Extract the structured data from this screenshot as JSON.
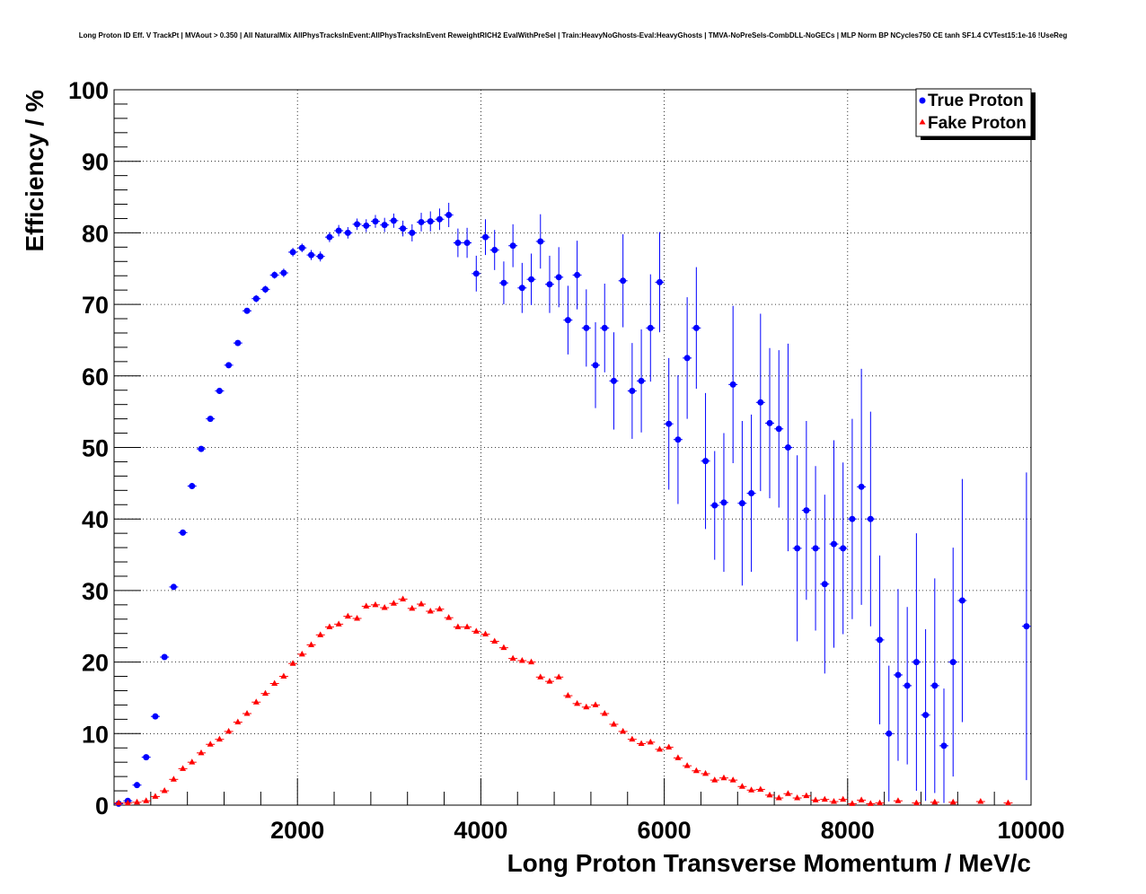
{
  "chart_data": {
    "type": "scatter",
    "title": "Long Proton ID Eff. V TrackPt | MVAout > 0.350 | All NaturalMix AllPhysTracksInEvent:AllPhysTracksInEvent ReweightRICH2 EvalWithPreSel | Train:HeavyNoGhosts-Eval:HeavyGhosts | TMVA-NoPreSels-CombDLL-NoGECs | MLP Norm BP NCycles750 CE tanh SF1.4 CVTest15:1e-16 !UseReg",
    "xlabel": "Long Proton Transverse Momentum / MeV/c",
    "ylabel": "Efficiency / %",
    "xlim": [
      0,
      10000
    ],
    "ylim": [
      0,
      100
    ],
    "grid": true,
    "legend_position": "top-right",
    "x_ticks": [
      2000,
      4000,
      6000,
      8000,
      10000
    ],
    "x_tick_labels": [
      "2000",
      "4000",
      "6000",
      "8000",
      "10000"
    ],
    "y_ticks": [
      0,
      10,
      20,
      30,
      40,
      50,
      60,
      70,
      80,
      90,
      100
    ],
    "y_tick_labels": [
      "0",
      "10",
      "20",
      "30",
      "40",
      "50",
      "60",
      "70",
      "80",
      "90",
      "100"
    ],
    "series": [
      {
        "name": "True Proton",
        "color": "#0000ff",
        "marker": "circle",
        "points": [
          {
            "x": 50,
            "y": 0.2,
            "err": 0.2
          },
          {
            "x": 150,
            "y": 0.6,
            "err": 0.2
          },
          {
            "x": 250,
            "y": 2.8,
            "err": 0.3
          },
          {
            "x": 350,
            "y": 6.7,
            "err": 0.3
          },
          {
            "x": 450,
            "y": 12.4,
            "err": 0.4
          },
          {
            "x": 550,
            "y": 20.7,
            "err": 0.4
          },
          {
            "x": 650,
            "y": 30.5,
            "err": 0.4
          },
          {
            "x": 750,
            "y": 38.1,
            "err": 0.4
          },
          {
            "x": 850,
            "y": 44.6,
            "err": 0.4
          },
          {
            "x": 950,
            "y": 49.8,
            "err": 0.4
          },
          {
            "x": 1050,
            "y": 54.0,
            "err": 0.4
          },
          {
            "x": 1150,
            "y": 57.9,
            "err": 0.4
          },
          {
            "x": 1250,
            "y": 61.5,
            "err": 0.4
          },
          {
            "x": 1350,
            "y": 64.6,
            "err": 0.4
          },
          {
            "x": 1450,
            "y": 69.1,
            "err": 0.4
          },
          {
            "x": 1550,
            "y": 70.8,
            "err": 0.5
          },
          {
            "x": 1650,
            "y": 72.1,
            "err": 0.5
          },
          {
            "x": 1750,
            "y": 74.1,
            "err": 0.5
          },
          {
            "x": 1850,
            "y": 74.4,
            "err": 0.6
          },
          {
            "x": 1950,
            "y": 77.3,
            "err": 0.6
          },
          {
            "x": 2050,
            "y": 77.9,
            "err": 0.6
          },
          {
            "x": 2150,
            "y": 76.9,
            "err": 0.7
          },
          {
            "x": 2250,
            "y": 76.7,
            "err": 0.7
          },
          {
            "x": 2350,
            "y": 79.4,
            "err": 0.7
          },
          {
            "x": 2450,
            "y": 80.3,
            "err": 0.8
          },
          {
            "x": 2550,
            "y": 80.0,
            "err": 0.8
          },
          {
            "x": 2650,
            "y": 81.2,
            "err": 0.8
          },
          {
            "x": 2750,
            "y": 81.0,
            "err": 0.9
          },
          {
            "x": 2850,
            "y": 81.6,
            "err": 0.9
          },
          {
            "x": 2950,
            "y": 81.1,
            "err": 1.0
          },
          {
            "x": 3050,
            "y": 81.7,
            "err": 1.0
          },
          {
            "x": 3150,
            "y": 80.6,
            "err": 1.1
          },
          {
            "x": 3250,
            "y": 80.0,
            "err": 1.2
          },
          {
            "x": 3350,
            "y": 81.5,
            "err": 1.3
          },
          {
            "x": 3450,
            "y": 81.6,
            "err": 1.4
          },
          {
            "x": 3550,
            "y": 81.9,
            "err": 1.5
          },
          {
            "x": 3650,
            "y": 82.5,
            "err": 1.7
          },
          {
            "x": 3750,
            "y": 78.6,
            "err": 2.0
          },
          {
            "x": 3850,
            "y": 78.6,
            "err": 2.1
          },
          {
            "x": 3950,
            "y": 74.3,
            "err": 2.5
          },
          {
            "x": 4050,
            "y": 79.4,
            "err": 2.5
          },
          {
            "x": 4150,
            "y": 77.6,
            "err": 2.8
          },
          {
            "x": 4250,
            "y": 73.0,
            "err": 3.0
          },
          {
            "x": 4350,
            "y": 78.2,
            "err": 3.0
          },
          {
            "x": 4450,
            "y": 72.3,
            "err": 3.5
          },
          {
            "x": 4550,
            "y": 73.5,
            "err": 3.6
          },
          {
            "x": 4650,
            "y": 78.8,
            "err": 3.8
          },
          {
            "x": 4750,
            "y": 72.8,
            "err": 4.0
          },
          {
            "x": 4850,
            "y": 73.8,
            "err": 4.2
          },
          {
            "x": 4950,
            "y": 67.8,
            "err": 4.8
          },
          {
            "x": 5050,
            "y": 74.1,
            "err": 4.8
          },
          {
            "x": 5150,
            "y": 66.7,
            "err": 5.4
          },
          {
            "x": 5250,
            "y": 61.5,
            "err": 6.0
          },
          {
            "x": 5350,
            "y": 66.7,
            "err": 6.2
          },
          {
            "x": 5450,
            "y": 59.3,
            "err": 6.8
          },
          {
            "x": 5550,
            "y": 73.3,
            "err": 6.5
          },
          {
            "x": 5650,
            "y": 57.9,
            "err": 6.7
          },
          {
            "x": 5750,
            "y": 59.3,
            "err": 7.2
          },
          {
            "x": 5850,
            "y": 66.7,
            "err": 7.5
          },
          {
            "x": 5950,
            "y": 73.1,
            "err": 7.0
          },
          {
            "x": 6050,
            "y": 53.3,
            "err": 9.2
          },
          {
            "x": 6150,
            "y": 51.1,
            "err": 9.0
          },
          {
            "x": 6250,
            "y": 62.5,
            "err": 8.5
          },
          {
            "x": 6350,
            "y": 66.7,
            "err": 8.5
          },
          {
            "x": 6450,
            "y": 48.1,
            "err": 9.5
          },
          {
            "x": 6550,
            "y": 41.9,
            "err": 7.6
          },
          {
            "x": 6650,
            "y": 42.3,
            "err": 9.7
          },
          {
            "x": 6750,
            "y": 58.8,
            "err": 11.0
          },
          {
            "x": 6850,
            "y": 42.2,
            "err": 11.5
          },
          {
            "x": 6950,
            "y": 43.6,
            "err": 11.0
          },
          {
            "x": 7050,
            "y": 56.3,
            "err": 12.4
          },
          {
            "x": 7150,
            "y": 53.4,
            "err": 10.5
          },
          {
            "x": 7250,
            "y": 52.6,
            "err": 11.0
          },
          {
            "x": 7350,
            "y": 50.0,
            "err": 14.5
          },
          {
            "x": 7450,
            "y": 35.9,
            "err": 13.0
          },
          {
            "x": 7550,
            "y": 41.2,
            "err": 12.5
          },
          {
            "x": 7650,
            "y": 35.9,
            "err": 11.5
          },
          {
            "x": 7750,
            "y": 30.9,
            "err": 12.5
          },
          {
            "x": 7850,
            "y": 36.5,
            "err": 14.5
          },
          {
            "x": 7950,
            "y": 35.9,
            "err": 12.0
          },
          {
            "x": 8050,
            "y": 40.0,
            "err": 14.0
          },
          {
            "x": 8150,
            "y": 44.5,
            "err": 16.5
          },
          {
            "x": 8250,
            "y": 40.0,
            "err": 15.0
          },
          {
            "x": 8350,
            "y": 23.1,
            "err": 11.8
          },
          {
            "x": 8450,
            "y": 10.0,
            "err": 9.5
          },
          {
            "x": 8550,
            "y": 18.2,
            "err": 12.0
          },
          {
            "x": 8650,
            "y": 16.7,
            "err": 11.0
          },
          {
            "x": 8750,
            "y": 20.0,
            "err": 18.0
          },
          {
            "x": 8850,
            "y": 12.6,
            "err": 12.0
          },
          {
            "x": 8950,
            "y": 16.7,
            "err": 15.0
          },
          {
            "x": 9050,
            "y": 8.3,
            "err": 8.0
          },
          {
            "x": 9150,
            "y": 20.0,
            "err": 16.0
          },
          {
            "x": 9250,
            "y": 28.6,
            "err": 17.0
          },
          {
            "x": 9950,
            "y": 25.0,
            "err": 21.5
          }
        ]
      },
      {
        "name": "Fake Proton",
        "color": "#ff0000",
        "marker": "triangle",
        "points": [
          {
            "x": 50,
            "y": 0.3
          },
          {
            "x": 150,
            "y": 0.3
          },
          {
            "x": 250,
            "y": 0.4
          },
          {
            "x": 350,
            "y": 0.6
          },
          {
            "x": 450,
            "y": 1.2
          },
          {
            "x": 550,
            "y": 2.0
          },
          {
            "x": 650,
            "y": 3.6
          },
          {
            "x": 750,
            "y": 5.1
          },
          {
            "x": 850,
            "y": 6.0
          },
          {
            "x": 950,
            "y": 7.3
          },
          {
            "x": 1050,
            "y": 8.5
          },
          {
            "x": 1150,
            "y": 9.2
          },
          {
            "x": 1250,
            "y": 10.3
          },
          {
            "x": 1350,
            "y": 11.6
          },
          {
            "x": 1450,
            "y": 12.8
          },
          {
            "x": 1550,
            "y": 14.4
          },
          {
            "x": 1650,
            "y": 15.6
          },
          {
            "x": 1750,
            "y": 17.0
          },
          {
            "x": 1850,
            "y": 18.0
          },
          {
            "x": 1950,
            "y": 19.8
          },
          {
            "x": 2050,
            "y": 21.1
          },
          {
            "x": 2150,
            "y": 22.4
          },
          {
            "x": 2250,
            "y": 23.8
          },
          {
            "x": 2350,
            "y": 24.9
          },
          {
            "x": 2450,
            "y": 25.3
          },
          {
            "x": 2550,
            "y": 26.4
          },
          {
            "x": 2650,
            "y": 26.1
          },
          {
            "x": 2750,
            "y": 27.8
          },
          {
            "x": 2850,
            "y": 28.0
          },
          {
            "x": 2950,
            "y": 27.6
          },
          {
            "x": 3050,
            "y": 28.2
          },
          {
            "x": 3150,
            "y": 28.8
          },
          {
            "x": 3250,
            "y": 27.5
          },
          {
            "x": 3350,
            "y": 28.1
          },
          {
            "x": 3450,
            "y": 27.1
          },
          {
            "x": 3550,
            "y": 27.4
          },
          {
            "x": 3650,
            "y": 26.2
          },
          {
            "x": 3750,
            "y": 24.9
          },
          {
            "x": 3850,
            "y": 24.9
          },
          {
            "x": 3950,
            "y": 24.3
          },
          {
            "x": 4050,
            "y": 23.9
          },
          {
            "x": 4150,
            "y": 22.9
          },
          {
            "x": 4250,
            "y": 22.0
          },
          {
            "x": 4350,
            "y": 20.5
          },
          {
            "x": 4450,
            "y": 20.2
          },
          {
            "x": 4550,
            "y": 20.0
          },
          {
            "x": 4650,
            "y": 17.9
          },
          {
            "x": 4750,
            "y": 17.3
          },
          {
            "x": 4850,
            "y": 17.9
          },
          {
            "x": 4950,
            "y": 15.3
          },
          {
            "x": 5050,
            "y": 14.2
          },
          {
            "x": 5150,
            "y": 13.7
          },
          {
            "x": 5250,
            "y": 14.0
          },
          {
            "x": 5350,
            "y": 12.8
          },
          {
            "x": 5450,
            "y": 11.3
          },
          {
            "x": 5550,
            "y": 10.3
          },
          {
            "x": 5650,
            "y": 9.2
          },
          {
            "x": 5750,
            "y": 8.6
          },
          {
            "x": 5850,
            "y": 8.8
          },
          {
            "x": 5950,
            "y": 7.8
          },
          {
            "x": 6050,
            "y": 8.1
          },
          {
            "x": 6150,
            "y": 6.6
          },
          {
            "x": 6250,
            "y": 5.5
          },
          {
            "x": 6350,
            "y": 4.8
          },
          {
            "x": 6450,
            "y": 4.4
          },
          {
            "x": 6550,
            "y": 3.5
          },
          {
            "x": 6650,
            "y": 3.8
          },
          {
            "x": 6750,
            "y": 3.5
          },
          {
            "x": 6850,
            "y": 2.6
          },
          {
            "x": 6950,
            "y": 2.1
          },
          {
            "x": 7050,
            "y": 2.2
          },
          {
            "x": 7150,
            "y": 1.4
          },
          {
            "x": 7250,
            "y": 1.0
          },
          {
            "x": 7350,
            "y": 1.6
          },
          {
            "x": 7450,
            "y": 1.0
          },
          {
            "x": 7550,
            "y": 1.3
          },
          {
            "x": 7650,
            "y": 0.7
          },
          {
            "x": 7750,
            "y": 0.8
          },
          {
            "x": 7850,
            "y": 0.5
          },
          {
            "x": 7950,
            "y": 0.8
          },
          {
            "x": 8050,
            "y": 0.2
          },
          {
            "x": 8150,
            "y": 0.7
          },
          {
            "x": 8250,
            "y": 0.2
          },
          {
            "x": 8350,
            "y": 0.3
          },
          {
            "x": 8550,
            "y": 0.6
          },
          {
            "x": 8750,
            "y": 0.3
          },
          {
            "x": 8950,
            "y": 0.4
          },
          {
            "x": 9150,
            "y": 0.4
          },
          {
            "x": 9450,
            "y": 0.5
          },
          {
            "x": 9750,
            "y": 0.3
          }
        ]
      }
    ]
  }
}
